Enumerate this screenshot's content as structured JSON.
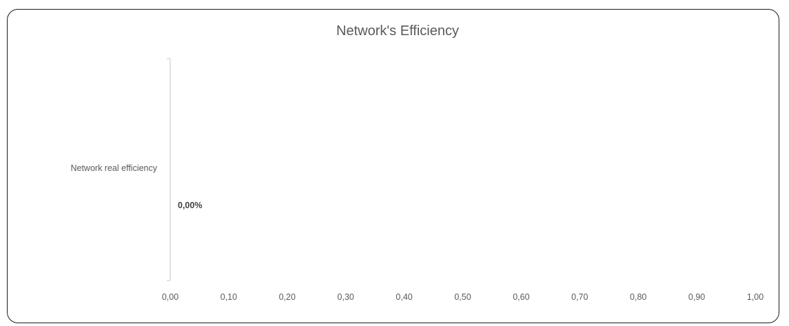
{
  "chart_data": {
    "type": "bar",
    "orientation": "horizontal",
    "title": "Network's Efficiency",
    "categories": [
      "Network real efficiency"
    ],
    "values": [
      0.0
    ],
    "data_labels": [
      "0,00%"
    ],
    "xlabel": "",
    "ylabel": "",
    "xlim": [
      0,
      1
    ],
    "x_ticks": [
      0,
      0.1,
      0.2,
      0.3,
      0.4,
      0.5,
      0.6,
      0.7,
      0.8,
      0.9,
      1.0
    ],
    "x_tick_labels": [
      "0,00",
      "0,10",
      "0,20",
      "0,30",
      "0,40",
      "0,50",
      "0,60",
      "0,70",
      "0,80",
      "0,90",
      "1,00"
    ],
    "grid": false,
    "legend": "none",
    "colors": {
      "bar": "#4472c4",
      "axis_line": "#d9d9d9",
      "text": "#595959",
      "frame": "#1a1a1a"
    }
  }
}
